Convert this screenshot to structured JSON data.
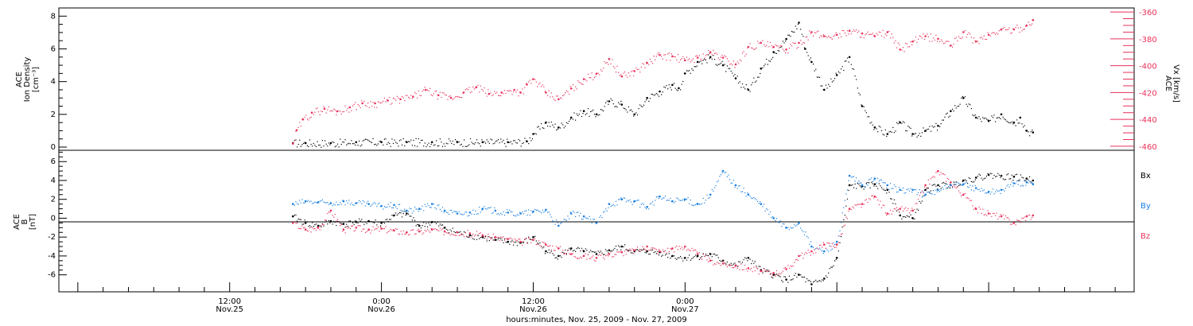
{
  "chart_data": [
    {
      "type": "scatter",
      "panel": "top",
      "ylabel_left": [
        "ACE",
        "Ion Density",
        "[cm⁻³]"
      ],
      "ylabel_right": [
        "ACE",
        "Vx [km/s]"
      ],
      "yticks_left": [
        "0",
        "2",
        "4",
        "6",
        "8"
      ],
      "ylim_left": [
        0,
        8.5
      ],
      "yticks_right": [
        "-360",
        "-380",
        "-400",
        "-420",
        "-440",
        "-460"
      ],
      "ylim_right": [
        -463,
        -357
      ],
      "series": [
        {
          "axis": "left",
          "color": "#000000",
          "x": [
            17.0,
            18,
            20,
            22,
            24,
            26,
            28,
            30,
            32,
            34,
            35.5,
            36,
            37,
            38,
            39,
            40,
            41,
            42,
            43,
            44,
            45,
            46,
            47,
            47.5,
            48,
            49,
            50,
            51,
            52,
            53,
            54,
            55,
            56,
            57,
            57.5,
            58,
            59,
            60,
            61,
            62,
            63,
            64,
            65,
            66,
            67,
            68,
            69,
            70,
            71,
            72,
            73,
            74,
            74.5,
            75,
            75.5
          ],
          "y": [
            0.25,
            0.25,
            0.25,
            0.3,
            0.3,
            0.3,
            0.3,
            0.3,
            0.3,
            0.3,
            0.35,
            0.8,
            1.5,
            1.2,
            1.8,
            2.2,
            2.0,
            2.8,
            2.6,
            2.0,
            3.0,
            3.4,
            3.8,
            3.6,
            4.5,
            5.2,
            5.5,
            5.0,
            4.2,
            3.5,
            4.8,
            5.8,
            6.6,
            7.6,
            6.0,
            5.2,
            3.5,
            4.4,
            5.5,
            2.5,
            1.2,
            0.8,
            1.5,
            0.8,
            1.0,
            1.3,
            2.2,
            3.0,
            1.8,
            1.6,
            2.0,
            1.5,
            1.8,
            1.0,
            0.9
          ]
        },
        {
          "axis": "right",
          "color": "#e8325a",
          "x": [
            17.0,
            17.3,
            17.8,
            18.5,
            19.5,
            20.5,
            21.5,
            22.5,
            23.5,
            24.5,
            25.5,
            26.5,
            27.5,
            28.5,
            29.5,
            30.5,
            31.5,
            32.5,
            33.5,
            34.5,
            35.0,
            35.5,
            36.0,
            37.0,
            38.0,
            39.0,
            40.0,
            41.0,
            42.0,
            43.0,
            44.0,
            45.0,
            46.0,
            47.0,
            48.0,
            49.0,
            50.0,
            51.0,
            52.0,
            53.0,
            54.0,
            55.0,
            56.0,
            57.0,
            58.0,
            59.0,
            60.0,
            61.0,
            62.0,
            63.0,
            64.0,
            65.0,
            66.0,
            67.0,
            68.0,
            69.0,
            70.0,
            71.0,
            72.0,
            73.0,
            74.0,
            75.0,
            75.5
          ],
          "y": [
            -458,
            -448,
            -440,
            -435,
            -432,
            -434,
            -431,
            -428,
            -428,
            -426,
            -425,
            -423,
            -418,
            -422,
            -424,
            -420,
            -416,
            -421,
            -420,
            -418,
            -420,
            -414,
            -410,
            -420,
            -425,
            -417,
            -410,
            -406,
            -395,
            -408,
            -404,
            -398,
            -392,
            -393,
            -396,
            -394,
            -390,
            -394,
            -399,
            -386,
            -383,
            -386,
            -388,
            -383,
            -375,
            -378,
            -377,
            -374,
            -376,
            -378,
            -375,
            -388,
            -382,
            -378,
            -380,
            -385,
            -375,
            -382,
            -377,
            -373,
            -373,
            -370,
            -366
          ]
        }
      ]
    },
    {
      "type": "scatter",
      "panel": "bottom",
      "ylabel_left": [
        "ACE",
        "B",
        "[nT]"
      ],
      "yticks_left": [
        "-6",
        "-4",
        "-2",
        "0",
        "2",
        "4",
        "6"
      ],
      "ylim_left": [
        -7.8,
        7.2
      ],
      "legend": [
        "Bx",
        "By",
        "Bz"
      ],
      "series": [
        {
          "name": "Bx",
          "color": "#000000",
          "x": [
            17.0,
            18,
            19,
            20,
            21,
            22,
            23,
            24,
            25,
            26,
            27,
            28,
            29,
            30,
            31,
            32,
            33,
            34,
            35,
            36,
            37,
            38,
            39,
            40,
            41,
            42,
            43,
            44,
            45,
            46,
            47,
            48,
            49,
            50,
            51,
            52,
            53,
            54,
            55,
            56,
            57,
            58,
            59,
            60,
            61,
            62,
            63,
            64,
            65,
            66,
            67,
            68,
            69,
            70,
            71,
            72,
            73,
            74,
            75,
            75.5
          ],
          "y": [
            0.2,
            -0.5,
            -0.8,
            -0.3,
            -0.6,
            -0.4,
            -0.3,
            -0.5,
            0.3,
            0.5,
            -0.8,
            -0.4,
            -1.0,
            -1.5,
            -1.8,
            -2.0,
            -2.3,
            -2.5,
            -2.6,
            -2.0,
            -3.5,
            -4.0,
            -3.2,
            -3.5,
            -3.8,
            -3.4,
            -3.0,
            -3.5,
            -3.5,
            -3.6,
            -4.0,
            -4.2,
            -4.0,
            -3.8,
            -4.5,
            -5.0,
            -4.2,
            -5.5,
            -6.0,
            -6.5,
            -6.0,
            -7.0,
            -6.4,
            -4.2,
            3.5,
            3.4,
            3.6,
            3.0,
            0.3,
            0.0,
            3.0,
            3.5,
            3.5,
            4.0,
            4.3,
            4.6,
            4.5,
            4.4,
            4.2,
            4.0
          ]
        },
        {
          "name": "By",
          "color": "#1a7fe0",
          "x": [
            17.0,
            18,
            19,
            20,
            21,
            22,
            23,
            24,
            25,
            26,
            27,
            28,
            29,
            30,
            31,
            32,
            33,
            34,
            35,
            36,
            37,
            38,
            39,
            40,
            41,
            42,
            43,
            44,
            45,
            46,
            47,
            48,
            49,
            50,
            51,
            52,
            53,
            54,
            55,
            56,
            57,
            58,
            59,
            60,
            61,
            62,
            63,
            64,
            65,
            66,
            67,
            68,
            69,
            70,
            71,
            72,
            73,
            74,
            75,
            75.5
          ],
          "y": [
            1.5,
            1.8,
            1.7,
            1.6,
            1.8,
            1.6,
            1.5,
            1.3,
            1.4,
            0.8,
            1.0,
            1.5,
            0.8,
            0.5,
            0.6,
            1.0,
            0.8,
            0.6,
            0.5,
            0.7,
            0.9,
            -0.8,
            0.5,
            0.2,
            -0.5,
            1.5,
            2.0,
            1.8,
            1.2,
            2.3,
            1.8,
            2.0,
            1.5,
            2.5,
            5.0,
            3.5,
            2.5,
            1.5,
            0.0,
            -1.0,
            -0.5,
            -3.0,
            -3.5,
            -2.5,
            4.5,
            3.5,
            4.2,
            3.5,
            3.0,
            3.0,
            2.5,
            3.0,
            3.5,
            3.6,
            3.2,
            2.8,
            3.0,
            3.7,
            3.8,
            3.6
          ]
        },
        {
          "name": "Bz",
          "color": "#e8325a",
          "x": [
            17.0,
            18,
            19,
            20,
            21,
            22,
            23,
            24,
            25,
            26,
            27,
            28,
            29,
            30,
            31,
            32,
            33,
            34,
            35,
            36,
            37,
            38,
            39,
            40,
            41,
            42,
            43,
            44,
            45,
            46,
            47,
            48,
            49,
            50,
            51,
            52,
            53,
            54,
            55,
            56,
            57,
            58,
            59,
            60,
            61,
            62,
            63,
            64,
            65,
            66,
            67,
            68,
            69,
            70,
            71,
            72,
            73,
            74,
            75,
            75.5
          ],
          "y": [
            -0.5,
            -1.2,
            -1.0,
            0.8,
            -1.2,
            -1.0,
            -1.2,
            -1.1,
            -1.3,
            -1.5,
            -1.4,
            -1.2,
            -1.4,
            -1.5,
            -1.6,
            -1.8,
            -2.0,
            -2.2,
            -2.5,
            -2.3,
            -2.8,
            -3.2,
            -3.8,
            -4.0,
            -4.2,
            -3.8,
            -3.6,
            -3.4,
            -3.0,
            -3.5,
            -3.2,
            -3.0,
            -3.8,
            -4.5,
            -4.8,
            -5.0,
            -5.3,
            -5.6,
            -5.8,
            -5.4,
            -4.0,
            -3.5,
            -2.8,
            -2.8,
            1.0,
            1.5,
            2.3,
            0.5,
            1.0,
            0.8,
            3.5,
            5.0,
            3.8,
            2.5,
            1.0,
            0.5,
            0.2,
            -0.5,
            0.2,
            0.3
          ]
        }
      ]
    },
    {
      "type": "time-axis",
      "xlim": [
        -1.5,
        83.5
      ],
      "major_ticks": [
        {
          "x": 12,
          "time": "12:00",
          "date": "Nov.25"
        },
        {
          "x": 24,
          "time": "0:00",
          "date": "Nov.26"
        },
        {
          "x": 36,
          "time": "12:00",
          "date": "Nov.26"
        },
        {
          "x": 48,
          "time": "0:00",
          "date": "Nov.27"
        }
      ],
      "xlabel": "hours:minutes, Nov. 25, 2009 - Nov. 27, 2009"
    }
  ]
}
